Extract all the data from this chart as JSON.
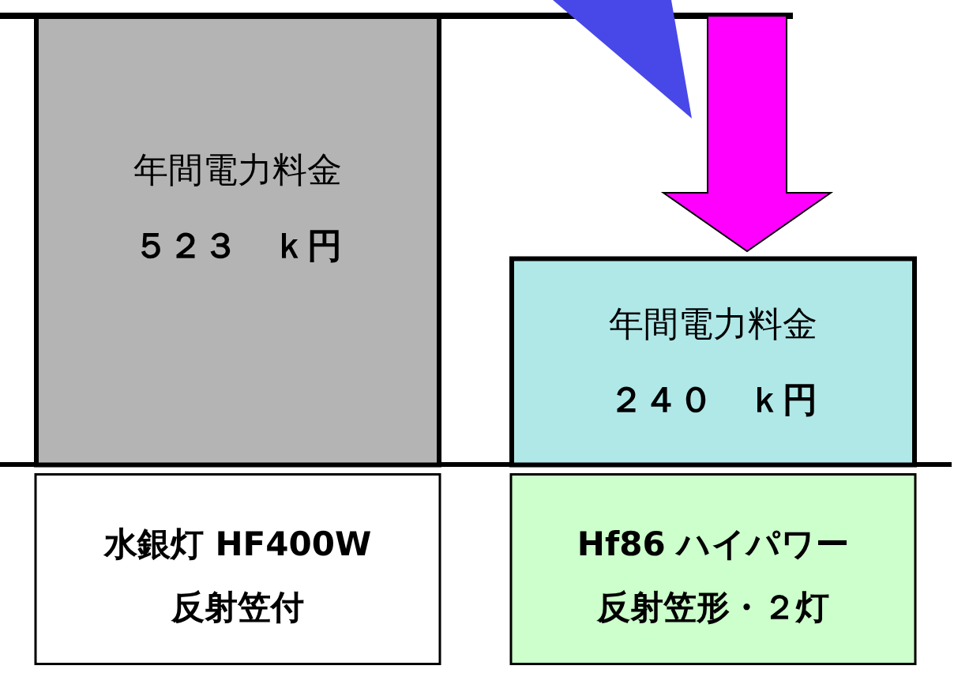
{
  "chart_data": {
    "type": "bar",
    "categories": [
      "水銀灯 HF400W反射笠付",
      "Hf86 ハイパワー反射笠形・２灯"
    ],
    "values": [
      523,
      240
    ],
    "colors": [
      "#b4b4b4",
      "#b0e8e8"
    ],
    "value_labels": [
      "年間電力料金５２３　ｋ円",
      "年間電力料金２４０　ｋ円"
    ],
    "ref_lines": [
      {
        "axis": "y",
        "value": 523,
        "color": "#000000"
      }
    ],
    "grid": false,
    "legend": false
  }
}
